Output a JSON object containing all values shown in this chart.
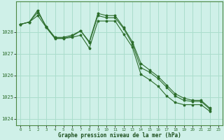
{
  "title": "Graphe pression niveau de la mer (hPa)",
  "bg_color": "#cff0e8",
  "grid_color": "#aaddcc",
  "line_color": "#2d6e2d",
  "marker_color": "#2d6e2d",
  "ylim": [
    1023.7,
    1029.4
  ],
  "yticks": [
    1024,
    1025,
    1026,
    1027,
    1028
  ],
  "xlim": [
    -0.5,
    23.5
  ],
  "xticks": [
    0,
    1,
    2,
    3,
    4,
    5,
    6,
    7,
    8,
    9,
    10,
    11,
    12,
    13,
    14,
    15,
    16,
    17,
    18,
    19,
    20,
    21,
    22,
    23
  ],
  "series": [
    [
      1028.35,
      1028.45,
      1028.9,
      1028.25,
      1027.75,
      1027.75,
      1027.85,
      1028.05,
      1027.5,
      1028.75,
      1028.65,
      1028.65,
      1028.15,
      1027.45,
      1026.35,
      1026.15,
      1025.85,
      1025.45,
      1025.05,
      1024.85,
      1024.8,
      1024.8,
      1024.45,
      null
    ],
    [
      1028.35,
      1028.45,
      1029.0,
      1028.2,
      1027.7,
      1027.7,
      1027.8,
      1028.05,
      1027.55,
      1028.85,
      1028.75,
      1028.75,
      1028.2,
      1027.55,
      1026.55,
      1026.25,
      1025.95,
      1025.55,
      1025.15,
      1024.95,
      1024.85,
      1024.85,
      1024.5,
      null
    ],
    [
      1028.35,
      1028.45,
      1028.75,
      1028.2,
      1027.7,
      1027.7,
      1027.75,
      1027.85,
      1027.25,
      1028.5,
      1028.5,
      1028.5,
      1027.9,
      1027.3,
      1026.05,
      1025.8,
      1025.5,
      1025.05,
      1024.75,
      1024.65,
      1024.65,
      1024.65,
      1024.35,
      null
    ]
  ]
}
